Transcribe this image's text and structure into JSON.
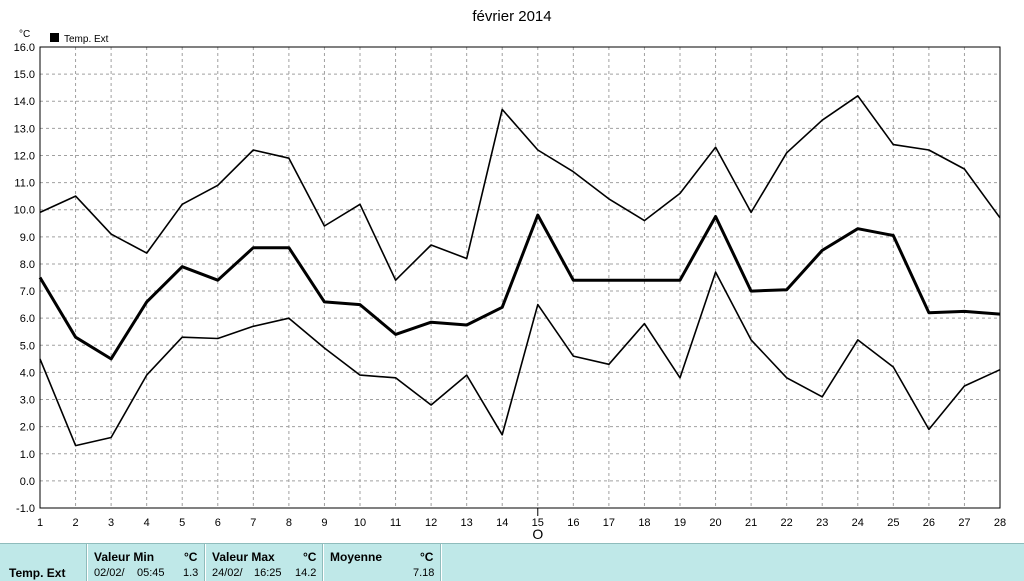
{
  "chart_data": {
    "type": "line",
    "title": "février 2014",
    "ylabel": "°C",
    "legend": "Temp. Ext",
    "legend_position": "top-left",
    "ylim": [
      -1.0,
      16.0
    ],
    "yticks": [
      "16.0",
      "15.0",
      "14.0",
      "13.0",
      "12.0",
      "11.0",
      "10.0",
      "9.0",
      "8.0",
      "7.0",
      "6.0",
      "5.0",
      "4.0",
      "3.0",
      "2.0",
      "1.0",
      "0.0",
      "-1.0"
    ],
    "x": [
      1,
      2,
      3,
      4,
      5,
      6,
      7,
      8,
      9,
      10,
      11,
      12,
      13,
      14,
      15,
      16,
      17,
      18,
      19,
      20,
      21,
      22,
      23,
      24,
      25,
      26,
      27,
      28
    ],
    "xticks": [
      "1",
      "2",
      "3",
      "4",
      "5",
      "6",
      "7",
      "8",
      "9",
      "10",
      "11",
      "12",
      "13",
      "14",
      "15",
      "16",
      "17",
      "18",
      "19",
      "20",
      "21",
      "22",
      "23",
      "24",
      "25",
      "26",
      "27",
      "28"
    ],
    "grid": true,
    "marker_label": "O",
    "marker_x": 15,
    "series": [
      {
        "role": "max",
        "values": [
          9.9,
          10.5,
          9.1,
          8.4,
          10.2,
          10.9,
          12.2,
          11.9,
          9.4,
          10.2,
          7.4,
          8.7,
          8.2,
          13.7,
          12.2,
          11.4,
          10.4,
          9.6,
          10.6,
          12.3,
          9.9,
          12.1,
          13.3,
          14.2,
          12.4,
          12.2,
          11.5,
          9.7
        ]
      },
      {
        "role": "mean",
        "values": [
          7.5,
          5.3,
          4.5,
          6.6,
          7.9,
          7.4,
          8.6,
          8.6,
          6.6,
          6.5,
          5.4,
          5.85,
          5.75,
          6.4,
          9.8,
          7.4,
          7.4,
          7.4,
          7.4,
          9.75,
          7.0,
          7.05,
          8.5,
          9.3,
          9.05,
          6.2,
          6.25,
          6.15
        ]
      },
      {
        "role": "min",
        "values": [
          4.5,
          1.3,
          1.6,
          3.9,
          5.3,
          5.25,
          5.7,
          6.0,
          4.9,
          3.9,
          3.8,
          2.8,
          3.9,
          1.7,
          6.5,
          4.6,
          4.3,
          5.8,
          3.8,
          7.7,
          5.2,
          3.8,
          3.1,
          5.2,
          4.2,
          1.9,
          3.5,
          4.1
        ]
      }
    ],
    "colors": {
      "line": "#000000",
      "grid": "#a0a0a0",
      "panel": "#bfe8e8"
    }
  },
  "stats": {
    "row_label": "Temp. Ext",
    "min_header": "Valeur Min",
    "min_unit": "°C",
    "min_date": "02/02/",
    "min_time": "05:45",
    "min_value": "1.3",
    "max_header": "Valeur Max",
    "max_unit": "°C",
    "max_date": "24/02/",
    "max_time": "16:25",
    "max_value": "14.2",
    "avg_header": "Moyenne",
    "avg_unit": "°C",
    "avg_value": "7.18"
  }
}
